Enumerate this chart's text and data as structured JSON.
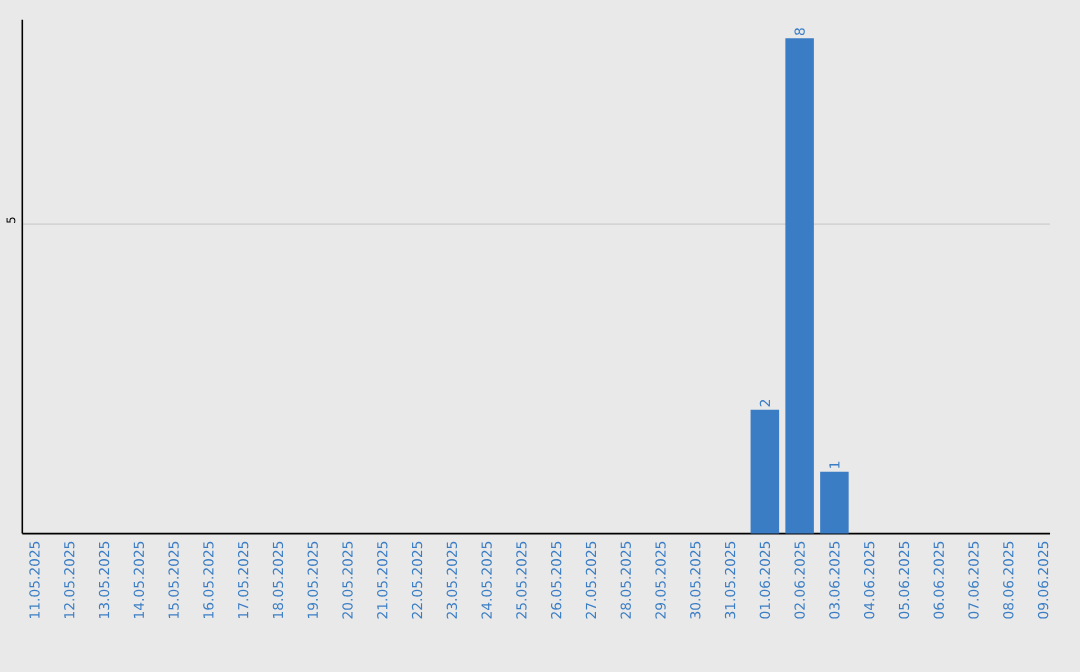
{
  "chart_data": {
    "type": "bar",
    "ylim": [
      0,
      8.3
    ],
    "yticks": [
      5
    ],
    "grid": "y",
    "data_labels": true,
    "categories": [
      "11.05.2025",
      "12.05.2025",
      "13.05.2025",
      "14.05.2025",
      "15.05.2025",
      "16.05.2025",
      "17.05.2025",
      "18.05.2025",
      "19.05.2025",
      "20.05.2025",
      "21.05.2025",
      "22.05.2025",
      "23.05.2025",
      "24.05.2025",
      "25.05.2025",
      "26.05.2025",
      "27.05.2025",
      "28.05.2025",
      "29.05.2025",
      "30.05.2025",
      "31.05.2025",
      "01.06.2025",
      "02.06.2025",
      "03.06.2025",
      "04.06.2025",
      "05.06.2025",
      "06.06.2025",
      "07.06.2025",
      "08.06.2025",
      "09.06.2025"
    ],
    "values": [
      null,
      null,
      null,
      null,
      null,
      null,
      null,
      null,
      null,
      null,
      null,
      null,
      null,
      null,
      null,
      null,
      null,
      null,
      null,
      null,
      null,
      2,
      8,
      1,
      null,
      null,
      null,
      null,
      null,
      null
    ],
    "color": "#3a7dc4"
  }
}
